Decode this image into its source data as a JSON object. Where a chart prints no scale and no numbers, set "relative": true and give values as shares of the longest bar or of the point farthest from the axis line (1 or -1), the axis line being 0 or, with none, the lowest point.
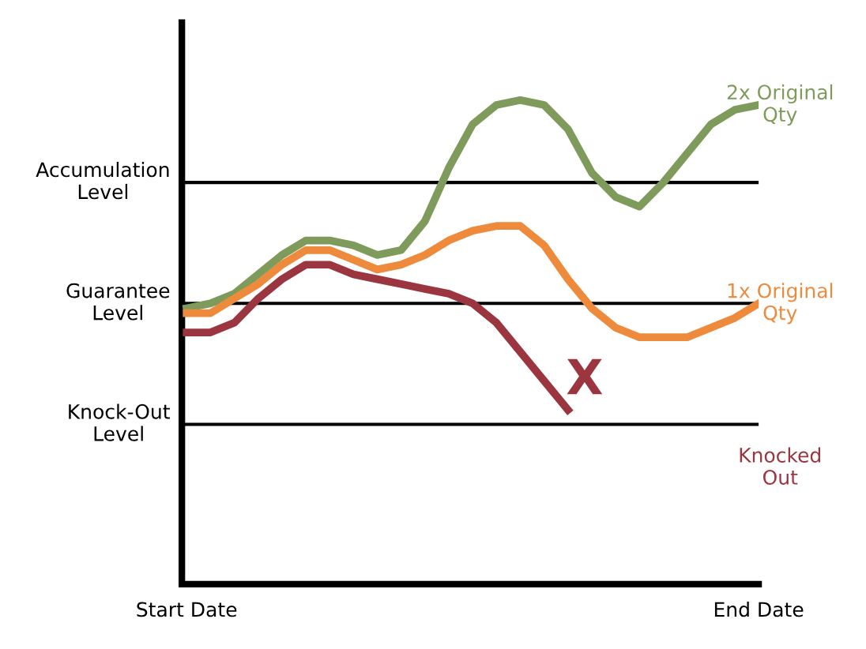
{
  "chart_data": {
    "type": "line",
    "relative": true,
    "categories": [
      "Start Date",
      null,
      null,
      null,
      null,
      null,
      null,
      null,
      null,
      null,
      null,
      null,
      null,
      null,
      null,
      null,
      null,
      null,
      null,
      null,
      null,
      null,
      null,
      null,
      "End Date"
    ],
    "series": [
      {
        "name": "2x Original Qty",
        "color": "#7f9b5c",
        "values": [
          0.57,
          0.58,
          0.6,
          0.64,
          0.68,
          0.71,
          0.71,
          0.7,
          0.68,
          0.69,
          0.75,
          0.86,
          0.95,
          0.99,
          1.0,
          0.99,
          0.94,
          0.85,
          0.8,
          0.78,
          0.83,
          0.89,
          0.95,
          0.98,
          0.99
        ]
      },
      {
        "name": "1x Original Qty",
        "color": "#ee8a3c",
        "values": [
          0.56,
          0.56,
          0.59,
          0.62,
          0.66,
          0.69,
          0.69,
          0.67,
          0.65,
          0.66,
          0.68,
          0.71,
          0.73,
          0.74,
          0.74,
          0.7,
          0.63,
          0.57,
          0.53,
          0.51,
          0.51,
          0.51,
          0.53,
          0.55,
          0.58
        ]
      },
      {
        "name": "Knocked Out",
        "color": "#9b3640",
        "values": [
          0.52,
          0.52,
          0.54,
          0.59,
          0.63,
          0.66,
          0.66,
          0.64,
          0.63,
          0.62,
          0.61,
          0.6,
          0.58,
          0.54,
          0.48,
          0.42,
          0.36,
          null,
          null,
          null,
          null,
          null,
          null,
          null,
          null
        ]
      }
    ],
    "ref_lines": [
      {
        "axis": "y",
        "value": 0.83,
        "label": "Accumulation Level",
        "color": "#000000"
      },
      {
        "axis": "y",
        "value": 0.58,
        "label": "Guarantee Level",
        "color": "#000000"
      },
      {
        "axis": "y",
        "value": 0.33,
        "label": "Knock-Out Level",
        "color": "#000000"
      }
    ],
    "annotations": [
      "X"
    ],
    "line_style": "solid",
    "marker": "none",
    "grid": false,
    "legend": false
  }
}
